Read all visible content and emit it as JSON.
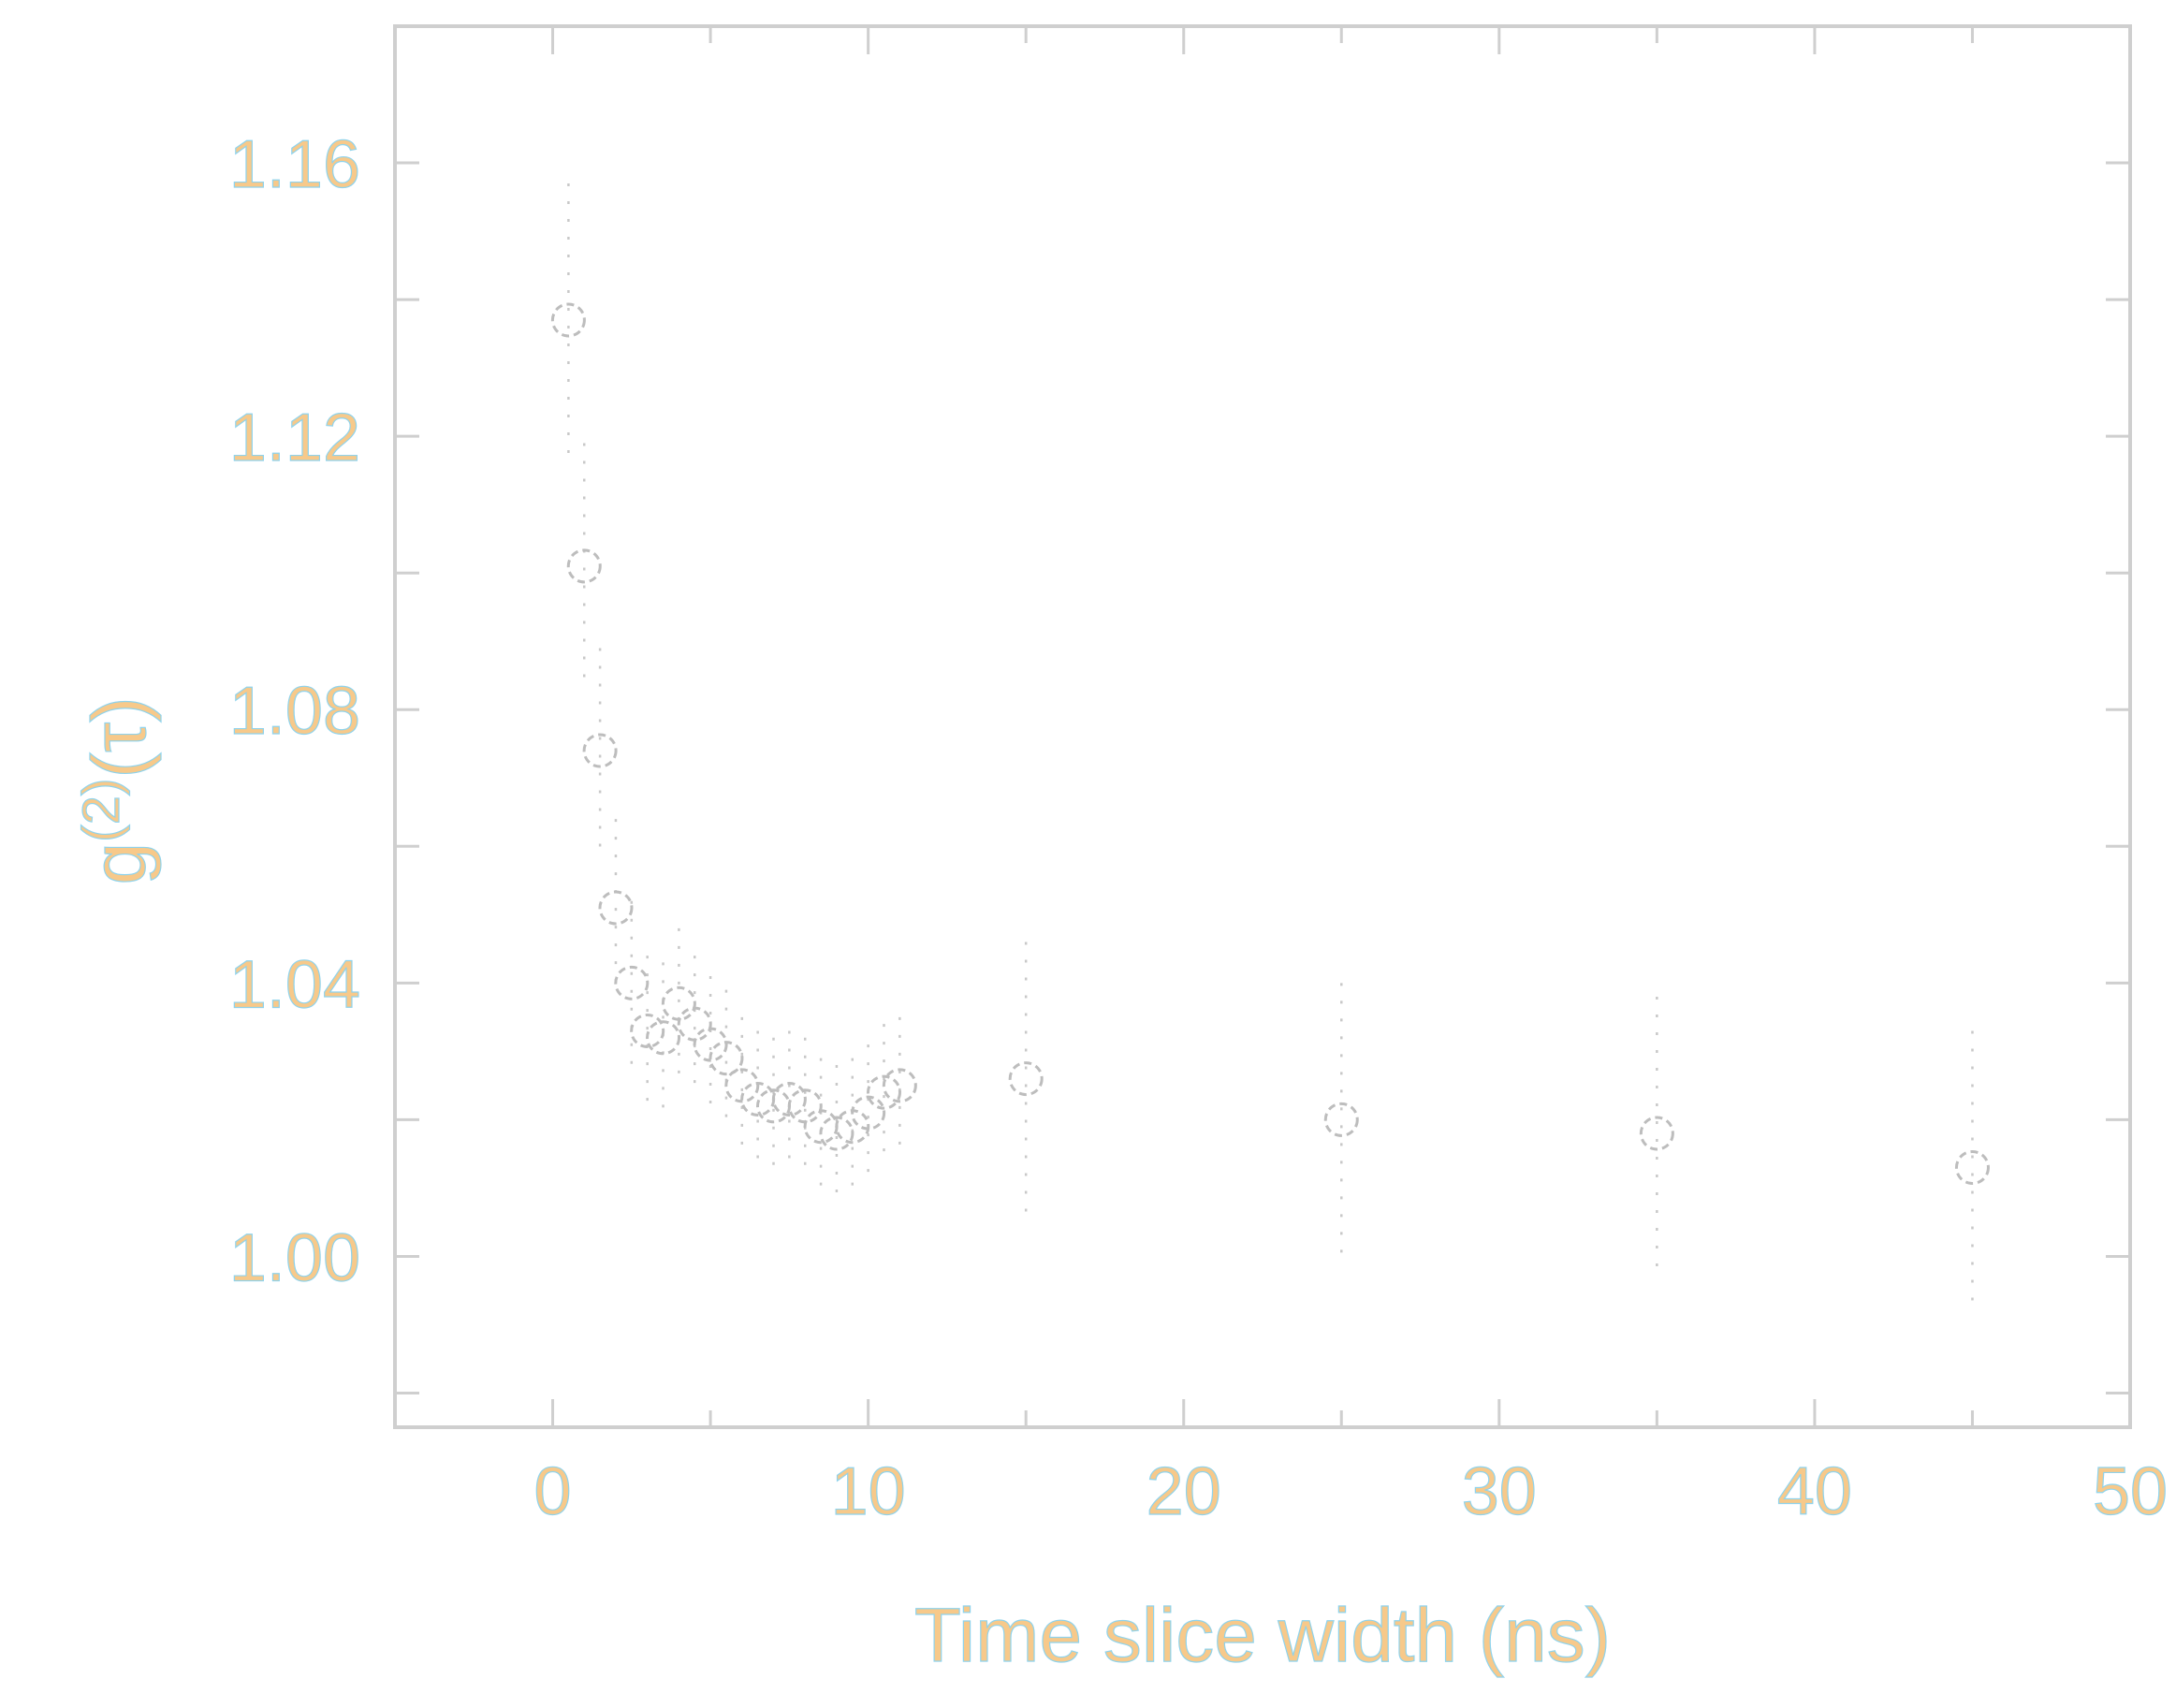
{
  "chart_data": {
    "type": "scatter",
    "title": "",
    "xlabel": "Time slice width (ns)",
    "ylabel": "g(2)(τ)",
    "xlim": [
      -5,
      50
    ],
    "ylim": [
      0.975,
      1.18
    ],
    "xticks": [
      0,
      10,
      20,
      30,
      40,
      50
    ],
    "yticks": [
      1.0,
      1.04,
      1.08,
      1.12,
      1.16
    ],
    "ytick_labels": [
      "1.00",
      "1.04",
      "1.08",
      "1.12",
      "1.16"
    ],
    "grid": false,
    "marker": "open-circle",
    "series": [
      {
        "points": [
          {
            "x": 0.5,
            "y": 1.137,
            "err": 0.02
          },
          {
            "x": 1.0,
            "y": 1.101,
            "err": 0.018
          },
          {
            "x": 1.5,
            "y": 1.074,
            "err": 0.015
          },
          {
            "x": 2.0,
            "y": 1.051,
            "err": 0.013
          },
          {
            "x": 2.5,
            "y": 1.04,
            "err": 0.012
          },
          {
            "x": 3.0,
            "y": 1.033,
            "err": 0.011
          },
          {
            "x": 3.5,
            "y": 1.032,
            "err": 0.011
          },
          {
            "x": 4.0,
            "y": 1.037,
            "err": 0.011
          },
          {
            "x": 4.5,
            "y": 1.034,
            "err": 0.01
          },
          {
            "x": 5.0,
            "y": 1.031,
            "err": 0.01
          },
          {
            "x": 5.5,
            "y": 1.029,
            "err": 0.01
          },
          {
            "x": 6.0,
            "y": 1.025,
            "err": 0.01
          },
          {
            "x": 6.5,
            "y": 1.023,
            "err": 0.01
          },
          {
            "x": 7.0,
            "y": 1.022,
            "err": 0.01
          },
          {
            "x": 7.5,
            "y": 1.023,
            "err": 0.01
          },
          {
            "x": 8.0,
            "y": 1.022,
            "err": 0.01
          },
          {
            "x": 8.5,
            "y": 1.019,
            "err": 0.01
          },
          {
            "x": 9.0,
            "y": 1.018,
            "err": 0.01
          },
          {
            "x": 9.5,
            "y": 1.019,
            "err": 0.01
          },
          {
            "x": 10.0,
            "y": 1.021,
            "err": 0.01
          },
          {
            "x": 10.5,
            "y": 1.024,
            "err": 0.01
          },
          {
            "x": 11.0,
            "y": 1.025,
            "err": 0.01
          },
          {
            "x": 15.0,
            "y": 1.026,
            "err": 0.02
          },
          {
            "x": 25.0,
            "y": 1.02,
            "err": 0.02
          },
          {
            "x": 35.0,
            "y": 1.018,
            "err": 0.02
          },
          {
            "x": 45.0,
            "y": 1.013,
            "err": 0.02
          }
        ]
      }
    ]
  }
}
